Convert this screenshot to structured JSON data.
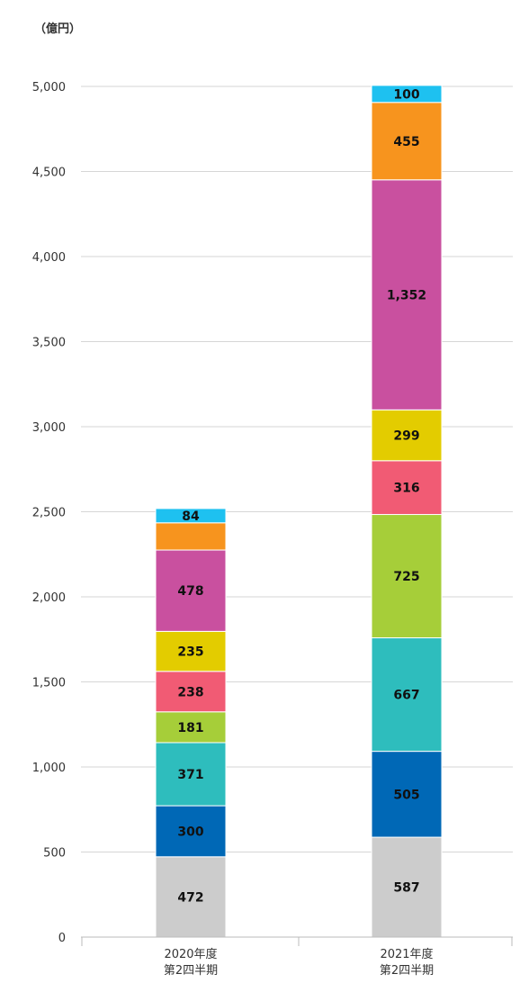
{
  "chart_data": {
    "type": "bar",
    "stacked": true,
    "unit_label": "（億円）",
    "categories": [
      [
        "2020年度",
        "第2四半期"
      ],
      [
        "2021年度",
        "第2四半期"
      ]
    ],
    "ylim": [
      0,
      5000
    ],
    "yticks": [
      0,
      500,
      1000,
      1500,
      2000,
      2500,
      3000,
      3500,
      4000,
      4500,
      5000
    ],
    "ytick_labels": [
      "0",
      "500",
      "1,000",
      "1,500",
      "2,000",
      "2,500",
      "3,000",
      "3,500",
      "4,000",
      "4,500",
      "5,000"
    ],
    "grid": true,
    "legend": "none",
    "series": [
      {
        "color": "#cccccc",
        "values": [
          472,
          587
        ],
        "labels": [
          "472",
          "587"
        ]
      },
      {
        "color": "#0068b6",
        "values": [
          300,
          505
        ],
        "labels": [
          "300",
          "505"
        ]
      },
      {
        "color": "#2ebdbd",
        "values": [
          371,
          667
        ],
        "labels": [
          "371",
          "667"
        ]
      },
      {
        "color": "#a6ce39",
        "values": [
          181,
          725
        ],
        "labels": [
          "181",
          "725"
        ]
      },
      {
        "color": "#f15b74",
        "values": [
          238,
          316
        ],
        "labels": [
          "238",
          "316"
        ]
      },
      {
        "color": "#e3cc00",
        "values": [
          235,
          299
        ],
        "labels": [
          "235",
          "299"
        ]
      },
      {
        "color": "#c9509f",
        "values": [
          478,
          1352
        ],
        "labels": [
          "478",
          "1,352"
        ]
      },
      {
        "color": "#f7941e",
        "values": [
          160,
          455
        ],
        "labels": [
          "",
          "455"
        ]
      },
      {
        "color": "#1ec1f0",
        "values": [
          84,
          100
        ],
        "labels": [
          "84",
          "100"
        ]
      }
    ]
  }
}
